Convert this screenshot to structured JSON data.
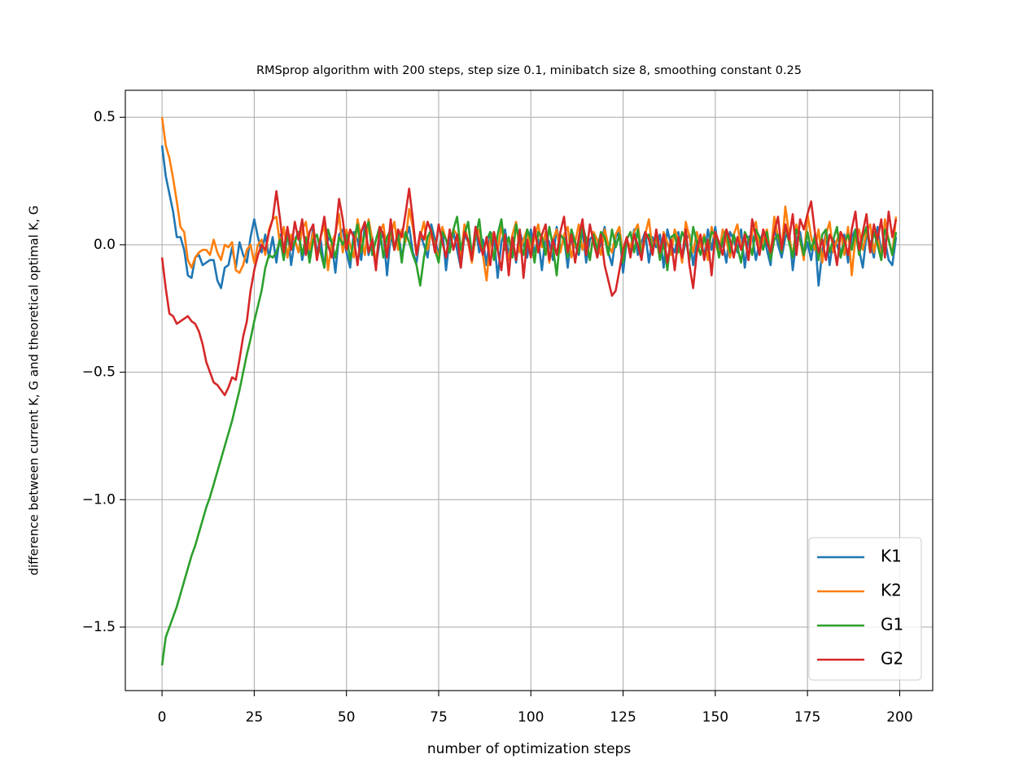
{
  "chart_data": {
    "type": "line",
    "title": "RMSprop algorithm with 200 steps, step size 0.1, minibatch size 8, smoothing constant 0.25",
    "xlabel": "number of optimization steps",
    "ylabel": "difference between current K, G and theoretical optimal K, G",
    "x": [
      0,
      1,
      2,
      3,
      4,
      5,
      6,
      7,
      8,
      9,
      10,
      11,
      12,
      13,
      14,
      15,
      16,
      17,
      18,
      19,
      20,
      21,
      22,
      23,
      24,
      25,
      26,
      27,
      28,
      29,
      30,
      31,
      32,
      33,
      34,
      35,
      36,
      37,
      38,
      39,
      40,
      41,
      42,
      43,
      44,
      45,
      46,
      47,
      48,
      49,
      50,
      51,
      52,
      53,
      54,
      55,
      56,
      57,
      58,
      59,
      60,
      61,
      62,
      63,
      64,
      65,
      66,
      67,
      68,
      69,
      70,
      71,
      72,
      73,
      74,
      75,
      76,
      77,
      78,
      79,
      80,
      81,
      82,
      83,
      84,
      85,
      86,
      87,
      88,
      89,
      90,
      91,
      92,
      93,
      94,
      95,
      96,
      97,
      98,
      99,
      100,
      101,
      102,
      103,
      104,
      105,
      106,
      107,
      108,
      109,
      110,
      111,
      112,
      113,
      114,
      115,
      116,
      117,
      118,
      119,
      120,
      121,
      122,
      123,
      124,
      125,
      126,
      127,
      128,
      129,
      130,
      131,
      132,
      133,
      134,
      135,
      136,
      137,
      138,
      139,
      140,
      141,
      142,
      143,
      144,
      145,
      146,
      147,
      148,
      149,
      150,
      151,
      152,
      153,
      154,
      155,
      156,
      157,
      158,
      159,
      160,
      161,
      162,
      163,
      164,
      165,
      166,
      167,
      168,
      169,
      170,
      171,
      172,
      173,
      174,
      175,
      176,
      177,
      178,
      179,
      180,
      181,
      182,
      183,
      184,
      185,
      186,
      187,
      188,
      189,
      190,
      191,
      192,
      193,
      194,
      195,
      196,
      197,
      198,
      199
    ],
    "series": [
      {
        "name": "K1",
        "color": "#1f77b4",
        "values": [
          0.39,
          0.27,
          0.2,
          0.13,
          0.03,
          0.03,
          -0.02,
          -0.12,
          -0.13,
          -0.05,
          -0.04,
          -0.08,
          -0.07,
          -0.06,
          -0.06,
          -0.14,
          -0.17,
          -0.09,
          -0.08,
          -0.01,
          -0.09,
          0.01,
          -0.04,
          -0.07,
          0.03,
          0.1,
          0.03,
          -0.03,
          0.04,
          -0.05,
          0.03,
          -0.07,
          0.04,
          -0.02,
          0.06,
          -0.08,
          0.02,
          0.05,
          -0.06,
          0.01,
          -0.04,
          0.07,
          -0.03,
          0.02,
          -0.09,
          0.03,
          0.01,
          -0.11,
          0.04,
          0.06,
          -0.03,
          -0.09,
          0.05,
          0.02,
          -0.06,
          0.08,
          -0.04,
          0.03,
          -0.08,
          0.01,
          0.05,
          -0.12,
          0.04,
          -0.02,
          0.06,
          -0.05,
          0.02,
          0.07,
          -0.03,
          -0.07,
          0.04,
          0.0,
          -0.05,
          0.08,
          0.02,
          -0.04,
          0.06,
          -0.1,
          0.03,
          0.05,
          -0.02,
          -0.09,
          0.04,
          0.01,
          -0.06,
          0.07,
          -0.03,
          0.02,
          -0.08,
          0.05,
          0.03,
          -0.13,
          0.01,
          0.06,
          -0.04,
          0.02,
          -0.07,
          0.05,
          0.0,
          -0.05,
          0.06,
          -0.03,
          0.02,
          -0.1,
          0.04,
          0.01,
          -0.06,
          0.07,
          -0.02,
          0.03,
          -0.09,
          0.05,
          0.0,
          -0.04,
          0.06,
          -0.07,
          0.02,
          0.04,
          -0.05,
          0.01,
          0.07,
          -0.03,
          -0.08,
          0.03,
          0.05,
          -0.11,
          0.02,
          -0.02,
          0.06,
          -0.04,
          0.01,
          0.05,
          -0.07,
          0.03,
          -0.01,
          0.04,
          -0.09,
          0.06,
          0.0,
          -0.03,
          0.05,
          -0.06,
          0.02,
          0.04,
          -0.08,
          0.01,
          0.03,
          -0.05,
          0.06,
          -0.02,
          0.07,
          -0.04,
          0.01,
          -0.07,
          0.05,
          0.02,
          -0.03,
          0.06,
          -0.09,
          0.03,
          0.04,
          -0.06,
          0.01,
          0.05,
          -0.02,
          -0.08,
          0.07,
          0.0,
          -0.05,
          0.03,
          0.06,
          -0.1,
          0.02,
          0.05,
          -0.04,
          0.01,
          -0.06,
          0.04,
          -0.16,
          -0.03,
          0.05,
          -0.08,
          0.02,
          0.0,
          -0.05,
          0.04,
          -0.07,
          0.03,
          0.06,
          -0.02,
          -0.09,
          0.04,
          0.01,
          -0.05,
          0.07,
          -0.03,
          0.02,
          -0.06,
          -0.08,
          0.03
        ]
      },
      {
        "name": "K2",
        "color": "#ff7f0e",
        "values": [
          0.5,
          0.39,
          0.34,
          0.26,
          0.17,
          0.07,
          0.05,
          -0.06,
          -0.09,
          -0.05,
          -0.03,
          -0.02,
          -0.02,
          -0.04,
          0.02,
          -0.03,
          -0.06,
          0.0,
          -0.01,
          0.01,
          -0.1,
          -0.11,
          -0.08,
          -0.02,
          0.0,
          -0.07,
          0.0,
          0.02,
          -0.04,
          0.06,
          0.1,
          0.11,
          0.0,
          0.07,
          -0.05,
          0.04,
          0.02,
          -0.03,
          0.06,
          0.09,
          -0.02,
          0.05,
          -0.06,
          0.03,
          0.08,
          -0.1,
          0.01,
          0.04,
          0.12,
          -0.03,
          0.06,
          0.0,
          -0.05,
          0.1,
          0.03,
          -0.04,
          0.1,
          0.02,
          -0.07,
          0.05,
          0.08,
          -0.03,
          0.04,
          0.09,
          -0.02,
          0.06,
          0.01,
          0.14,
          0.07,
          -0.04,
          0.03,
          0.09,
          -0.02,
          0.05,
          0.0,
          -0.06,
          0.07,
          0.02,
          -0.03,
          0.06,
          0.04,
          -0.05,
          0.08,
          0.01,
          -0.07,
          0.03,
          0.06,
          -0.04,
          -0.14,
          0.02,
          0.05,
          -0.02,
          0.07,
          0.0,
          -0.06,
          0.04,
          0.09,
          -0.03,
          0.02,
          0.06,
          -0.04,
          0.03,
          0.08,
          -0.01,
          0.05,
          -0.07,
          0.02,
          0.06,
          -0.03,
          0.04,
          0.07,
          -0.05,
          0.01,
          0.08,
          -0.02,
          0.03,
          -0.06,
          0.05,
          0.02,
          -0.04,
          0.06,
          0.0,
          -0.03,
          0.04,
          0.07,
          -0.05,
          0.02,
          -0.01,
          0.05,
          0.08,
          -0.03,
          0.04,
          0.1,
          -0.02,
          0.03,
          -0.06,
          0.05,
          0.01,
          -0.04,
          0.06,
          0.02,
          -0.07,
          0.09,
          0.03,
          -0.03,
          0.05,
          -0.01,
          0.04,
          -0.06,
          0.07,
          0.01,
          -0.04,
          0.06,
          0.02,
          -0.05,
          0.04,
          0.08,
          -0.02,
          0.03,
          -0.06,
          0.05,
          0.09,
          -0.03,
          0.02,
          0.06,
          -0.04,
          0.11,
          0.03,
          -0.02,
          0.15,
          0.04,
          -0.05,
          0.08,
          0.02,
          -0.06,
          0.12,
          0.03,
          -0.02,
          0.06,
          -0.07,
          0.04,
          0.09,
          -0.03,
          0.02,
          0.05,
          -0.04,
          0.07,
          -0.12,
          0.03,
          0.06,
          -0.02,
          0.05,
          0.08,
          -0.03,
          0.04,
          -0.06,
          0.1,
          0.02,
          -0.04,
          0.11
        ]
      },
      {
        "name": "G1",
        "color": "#2ca02c",
        "values": [
          -1.65,
          -1.54,
          -1.5,
          -1.46,
          -1.42,
          -1.37,
          -1.32,
          -1.27,
          -1.22,
          -1.18,
          -1.13,
          -1.08,
          -1.03,
          -0.99,
          -0.94,
          -0.89,
          -0.84,
          -0.79,
          -0.74,
          -0.69,
          -0.63,
          -0.57,
          -0.5,
          -0.43,
          -0.37,
          -0.3,
          -0.24,
          -0.18,
          -0.09,
          -0.04,
          -0.05,
          -0.03,
          0.02,
          -0.06,
          0.04,
          -0.02,
          0.01,
          0.05,
          -0.04,
          0.03,
          -0.07,
          0.02,
          0.04,
          -0.03,
          -0.09,
          0.06,
          0.01,
          -0.05,
          0.03,
          0.0,
          0.04,
          -0.06,
          0.02,
          0.08,
          -0.03,
          0.05,
          0.09,
          -0.04,
          0.02,
          0.07,
          -0.05,
          0.03,
          0.06,
          -0.02,
          0.04,
          -0.07,
          0.05,
          0.01,
          -0.04,
          -0.08,
          -0.16,
          -0.05,
          0.03,
          0.06,
          -0.02,
          -0.07,
          0.05,
          0.02,
          -0.03,
          0.06,
          0.11,
          -0.02,
          0.04,
          0.09,
          -0.04,
          0.03,
          0.1,
          -0.03,
          0.02,
          0.05,
          -0.06,
          0.04,
          0.1,
          -0.02,
          0.03,
          -0.05,
          0.08,
          0.01,
          -0.04,
          0.06,
          0.02,
          -0.07,
          0.05,
          0.03,
          -0.04,
          0.07,
          -0.01,
          -0.12,
          0.04,
          0.02,
          -0.05,
          0.06,
          0.01,
          -0.03,
          0.08,
          0.02,
          -0.06,
          0.04,
          -0.02,
          0.05,
          0.03,
          -0.04,
          0.06,
          -0.01,
          0.04,
          -0.07,
          0.02,
          0.05,
          -0.03,
          0.06,
          -0.05,
          0.03,
          0.04,
          -0.02,
          0.05,
          -0.06,
          0.01,
          -0.1,
          0.03,
          0.04,
          -0.03,
          0.05,
          0.02,
          -0.06,
          0.07,
          0.01,
          -0.04,
          0.03,
          -0.02,
          0.05,
          0.04,
          -0.05,
          0.02,
          0.06,
          -0.03,
          0.04,
          -0.01,
          -0.07,
          0.05,
          0.02,
          -0.04,
          0.06,
          0.03,
          -0.02,
          0.05,
          -0.06,
          0.02,
          0.04,
          -0.03,
          0.07,
          0.01,
          -0.05,
          0.06,
          0.02,
          -0.04,
          0.05,
          -0.02,
          0.03,
          -0.06,
          0.04,
          0.06,
          -0.03,
          0.02,
          0.07,
          -0.05,
          0.01,
          0.04,
          -0.02,
          0.06,
          -0.04,
          0.03,
          0.07,
          -0.03,
          0.05,
          0.0,
          -0.06,
          0.06,
          0.02,
          -0.04,
          0.05
        ]
      },
      {
        "name": "G2",
        "color": "#d62728",
        "values": [
          -0.05,
          -0.17,
          -0.27,
          -0.28,
          -0.31,
          -0.3,
          -0.29,
          -0.28,
          -0.3,
          -0.31,
          -0.34,
          -0.39,
          -0.46,
          -0.5,
          -0.54,
          -0.55,
          -0.57,
          -0.59,
          -0.56,
          -0.52,
          -0.53,
          -0.45,
          -0.36,
          -0.3,
          -0.18,
          -0.1,
          -0.04,
          0.0,
          -0.02,
          0.05,
          0.1,
          0.21,
          0.1,
          -0.03,
          0.07,
          -0.02,
          0.09,
          0.02,
          0.1,
          -0.04,
          0.05,
          0.08,
          -0.06,
          0.03,
          0.11,
          0.0,
          -0.05,
          0.04,
          0.18,
          0.1,
          -0.02,
          0.06,
          0.03,
          -0.08,
          0.05,
          0.09,
          -0.03,
          0.02,
          -0.1,
          0.07,
          0.04,
          -0.05,
          0.1,
          -0.02,
          0.06,
          0.03,
          0.12,
          0.22,
          0.1,
          -0.04,
          0.05,
          0.02,
          0.09,
          0.05,
          -0.03,
          0.08,
          0.01,
          -0.05,
          0.06,
          -0.02,
          0.04,
          -0.09,
          0.05,
          0.02,
          -0.06,
          0.07,
          0.01,
          -0.04,
          0.03,
          -0.08,
          0.05,
          -0.02,
          -0.1,
          0.04,
          -0.12,
          0.03,
          -0.06,
          0.06,
          -0.13,
          0.02,
          -0.05,
          0.07,
          -0.03,
          0.04,
          0.08,
          -0.06,
          0.02,
          -0.04,
          0.05,
          0.11,
          -0.03,
          0.04,
          -0.07,
          0.03,
          0.1,
          -0.04,
          0.08,
          0.01,
          -0.05,
          0.04,
          -0.08,
          -0.14,
          -0.2,
          -0.18,
          -0.1,
          -0.02,
          0.03,
          -0.05,
          0.04,
          0.0,
          -0.06,
          0.05,
          0.02,
          -0.04,
          0.06,
          -0.03,
          0.04,
          -0.07,
          0.02,
          -0.1,
          0.03,
          -0.05,
          0.06,
          -0.08,
          -0.17,
          -0.03,
          0.04,
          -0.06,
          0.02,
          -0.12,
          0.05,
          0.01,
          -0.04,
          0.06,
          0.02,
          -0.05,
          0.03,
          -0.02,
          0.04,
          -0.06,
          0.1,
          0.03,
          -0.04,
          0.06,
          0.01,
          -0.03,
          0.05,
          0.11,
          -0.02,
          0.08,
          0.02,
          0.12,
          -0.04,
          0.1,
          0.06,
          0.12,
          0.17,
          0.05,
          -0.03,
          0.02,
          -0.06,
          0.04,
          0.01,
          -0.08,
          0.05,
          0.02,
          -0.04,
          0.06,
          0.13,
          -0.02,
          0.05,
          0.12,
          -0.03,
          0.08,
          0.02,
          0.1,
          -0.05,
          0.13,
          0.03,
          0.1
        ]
      }
    ],
    "xlim": [
      -9.95,
      208.95
    ],
    "xticks": [
      0,
      25,
      50,
      75,
      100,
      125,
      150,
      175,
      200
    ],
    "ylim": [
      -1.749,
      0.606
    ],
    "yticks": [
      {
        "value": -1.5,
        "label": "−1.5"
      },
      {
        "value": -1.0,
        "label": "−1.0"
      },
      {
        "value": -0.5,
        "label": "−0.5"
      },
      {
        "value": 0,
        "label": "0.0"
      },
      0.5
    ],
    "grid": true,
    "legend": "lower right"
  }
}
